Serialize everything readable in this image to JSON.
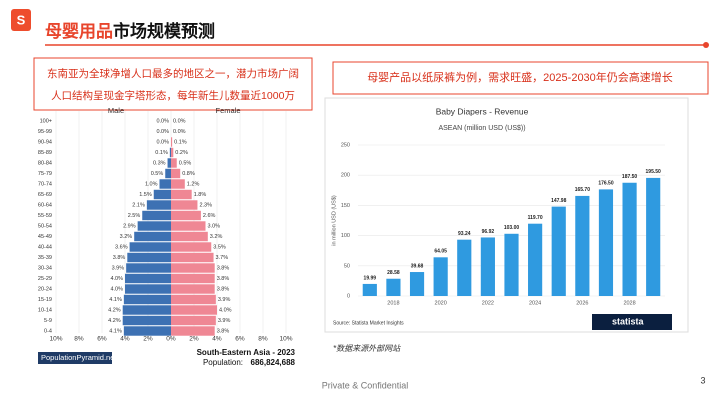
{
  "slide": {
    "title_highlight": "母婴用品",
    "title_rest": "市场规模预测",
    "left_note": [
      "东南亚为全球净增人口最多的地区之一，潜力市场广阔",
      "人口结构呈现金字塔形态，每年新生儿数量近1000万"
    ],
    "right_note": "母婴产品以纸尿裤为例，需求旺盛，2025-2030年仍会高速增长",
    "source_note": "*数据来源外部网站",
    "footer": "Private & Confidential",
    "page": "3"
  },
  "chart_data": [
    {
      "type": "pyramid",
      "categories": [
        "100+",
        "95-99",
        "90-94",
        "85-89",
        "80-84",
        "75-79",
        "70-74",
        "65-69",
        "60-64",
        "55-59",
        "50-54",
        "45-49",
        "40-44",
        "35-39",
        "30-34",
        "25-29",
        "20-24",
        "15-19",
        "10-14",
        "5-9",
        "0-4"
      ],
      "series": [
        {
          "name": "Male",
          "color": "#3d71b3",
          "values": [
            0.0,
            0.0,
            0.0,
            0.1,
            0.3,
            0.5,
            1.0,
            1.5,
            2.1,
            2.5,
            2.9,
            3.2,
            3.6,
            3.8,
            3.9,
            4.0,
            4.0,
            4.1,
            4.2,
            4.2,
            4.1
          ],
          "value_labels": [
            "0.0%",
            "0.0%",
            "0.0%",
            "0.1%",
            "0.3%",
            "0.5%",
            "1.0%",
            "1.5%",
            "2.1%",
            "2.5%",
            "2.9%",
            "3.2%",
            "3.6%",
            "3.8%",
            "3.9%",
            "4.0%",
            "4.0%",
            "4.1%",
            "4.2%",
            "4.2%",
            "4.1%"
          ]
        },
        {
          "name": "Female",
          "color": "#ef8794",
          "values": [
            0.0,
            0.0,
            0.1,
            0.2,
            0.5,
            0.8,
            1.2,
            1.8,
            2.3,
            2.6,
            3.0,
            3.2,
            3.5,
            3.7,
            3.8,
            3.8,
            3.8,
            3.9,
            4.0,
            3.9,
            3.8
          ],
          "value_labels": [
            "0.0%",
            "0.0%",
            "0.1%",
            "0.2%",
            "0.5%",
            "0.8%",
            "1.2%",
            "1.8%",
            "2.3%",
            "2.6%",
            "3.0%",
            "3.2%",
            "3.5%",
            "3.7%",
            "3.8%",
            "3.8%",
            "3.8%",
            "3.9%",
            "4.0%",
            "3.9%",
            "3.8%"
          ]
        }
      ],
      "xlim": [
        -10,
        10
      ],
      "xticks": [
        {
          "value": -10,
          "label": "10%"
        },
        {
          "value": -8,
          "label": "8%"
        },
        {
          "value": -6,
          "label": "6%"
        },
        {
          "value": -4,
          "label": "4%"
        },
        {
          "value": -2,
          "label": "2%"
        },
        {
          "value": 0,
          "label": "0%"
        },
        {
          "value": 2,
          "label": "2%"
        },
        {
          "value": 4,
          "label": "4%"
        },
        {
          "value": 6,
          "label": "6%"
        },
        {
          "value": 8,
          "label": "8%"
        },
        {
          "value": 10,
          "label": "10%"
        }
      ],
      "grid": true,
      "source": "PopulationPyramid.net",
      "region_title": "South-Eastern Asia - 2023",
      "population_label": "Population:",
      "population": "686,824,688"
    },
    {
      "type": "bar",
      "title": "Baby Diapers - Revenue",
      "subtitle": "ASEAN (million USD (US$))",
      "y_label": "in million USD (US$)",
      "categories": [
        null,
        "2018",
        null,
        "2020",
        null,
        "2022",
        null,
        "2024",
        null,
        "2026",
        null,
        "2028",
        null
      ],
      "values": [
        19.99,
        28.58,
        39.68,
        64.05,
        93.24,
        96.92,
        103.0,
        119.7,
        147.98,
        165.7,
        176.5,
        187.5,
        195.5
      ],
      "value_labels": [
        "19.99",
        "28.58",
        "39.68",
        "64.05",
        "93.24",
        "96.92",
        "103.00",
        "119.70",
        "147.98",
        "165.70",
        "176.50",
        "187.50",
        "195.50"
      ],
      "color": "#2f9ae0",
      "ylim": [
        0,
        250
      ],
      "yticks": [
        0,
        50,
        100,
        150,
        200,
        250
      ],
      "grid": true,
      "source": "Source: Statista Market Insights",
      "logo": "statista"
    }
  ]
}
